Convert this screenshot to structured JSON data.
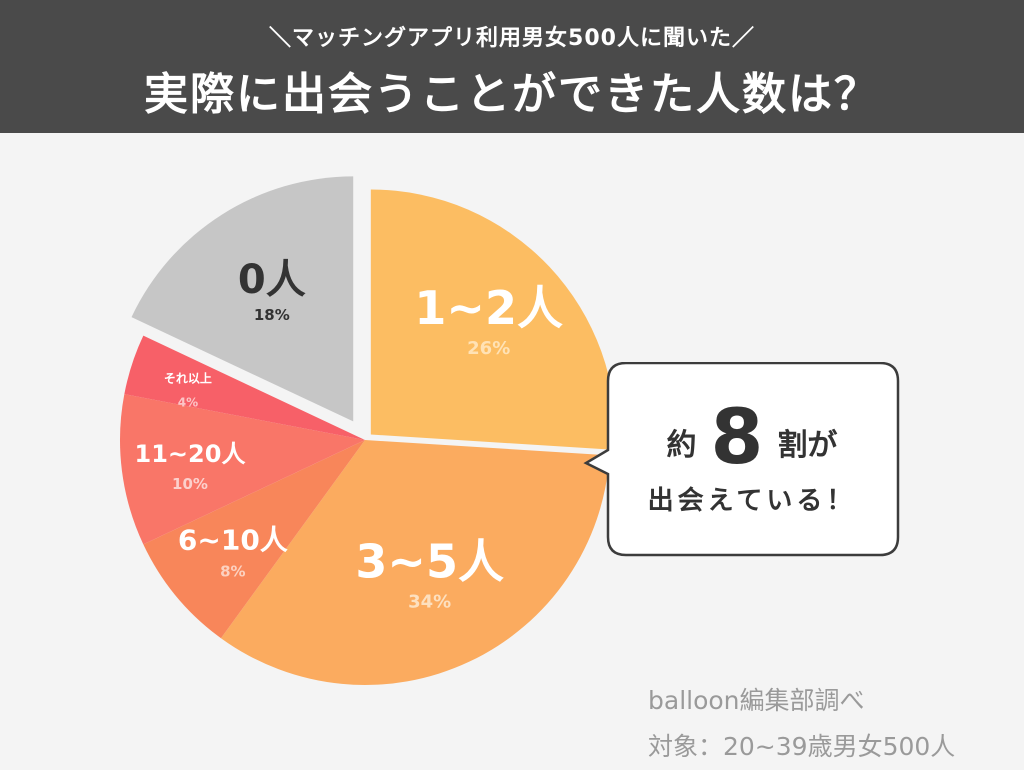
{
  "header": {
    "subtitle": "＼マッチングアプリ利用男女500人に聞いた／",
    "title": "実際に出会うことができた人数は？"
  },
  "chart_data": {
    "type": "pie",
    "title": "実際に出会うことができた人数は？",
    "slices": [
      {
        "label": "1~2人",
        "percent_label": "26%",
        "value": 26,
        "color": "#fcbd62"
      },
      {
        "label": "3~5人",
        "percent_label": "34%",
        "value": 34,
        "color": "#fbab5f"
      },
      {
        "label": "6~10人",
        "percent_label": "8%",
        "value": 8,
        "color": "#f8865a"
      },
      {
        "label": "11~20人",
        "percent_label": "10%",
        "value": 10,
        "color": "#f97668"
      },
      {
        "label": "それ以上",
        "percent_label": "4%",
        "value": 4,
        "color": "#f76068"
      },
      {
        "label": "0人",
        "percent_label": "18%",
        "value": 18,
        "color": "#c6c6c6"
      }
    ]
  },
  "callout": {
    "prefix": "約",
    "number": "8",
    "suffix": "割が",
    "line2": "出会えている！"
  },
  "source": {
    "credit": "balloon編集部調べ",
    "target": "対象：20~39歳男女500人"
  }
}
